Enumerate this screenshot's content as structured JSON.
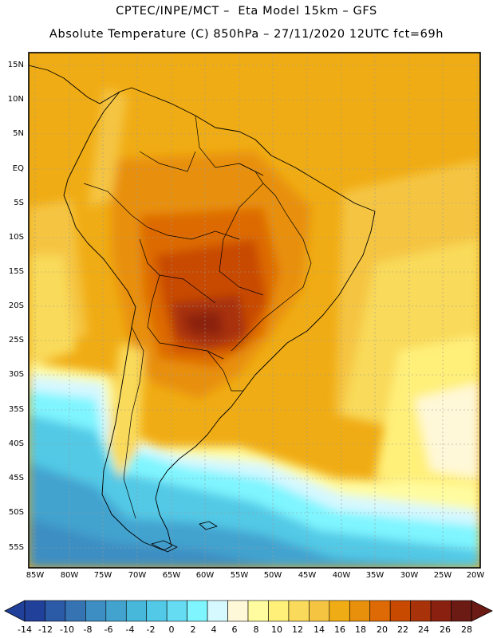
{
  "header": {
    "line1": "CPTEC/INPE/MCT –  Eta Model 15km – GFS",
    "line2": "Absolute Temperature (C) 850hPa – 27/11/2020 12UTC fct=69h"
  },
  "map": {
    "lat_labels": [
      "15N",
      "10N",
      "5N",
      "EQ",
      "5S",
      "10S",
      "15S",
      "20S",
      "25S",
      "30S",
      "35S",
      "40S",
      "45S",
      "50S",
      "55S"
    ],
    "lon_labels": [
      "85W",
      "80W",
      "75W",
      "70W",
      "65W",
      "60W",
      "55W",
      "50W",
      "45W",
      "40W",
      "35W",
      "30W",
      "25W",
      "20W"
    ]
  },
  "colorbar": {
    "labels": [
      "-14",
      "-12",
      "-10",
      "-8",
      "-6",
      "-4",
      "-2",
      "0",
      "2",
      "4",
      "6",
      "8",
      "10",
      "12",
      "14",
      "16",
      "18",
      "20",
      "22",
      "24",
      "26",
      "28"
    ],
    "colors": [
      "#21409a",
      "#2b5aa6",
      "#3573b3",
      "#3d8ec2",
      "#42a3cf",
      "#48b8da",
      "#52c9e6",
      "#66dcf2",
      "#7ff5ff",
      "#d6f8ff",
      "#fff8d8",
      "#fffca0",
      "#fff07a",
      "#f9da5a",
      "#f5c542",
      "#f0ac14",
      "#e8900c",
      "#dd6a04",
      "#c84a00",
      "#a8330a",
      "#8a2010",
      "#6b1a14"
    ]
  }
}
